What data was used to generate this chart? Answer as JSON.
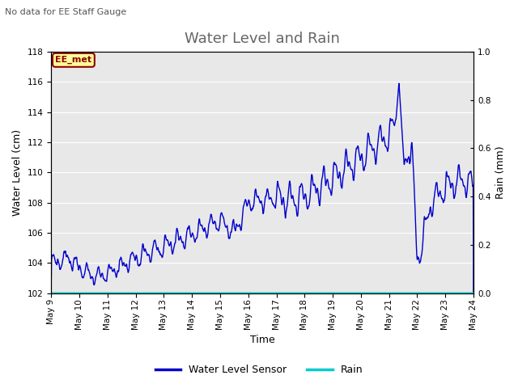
{
  "title": "Water Level and Rain",
  "subtitle": "No data for EE Staff Gauge",
  "xlabel": "Time",
  "ylabel_left": "Water Level (cm)",
  "ylabel_right": "Rain (mm)",
  "ylim_left": [
    102,
    118
  ],
  "ylim_right": [
    0.0,
    1.0
  ],
  "water_color": "#0000cc",
  "rain_color": "#00cccc",
  "bg_color": "#e8e8e8",
  "box_label": "EE_met",
  "box_bg": "#ffff99",
  "box_border": "#8b0000",
  "legend_wl": "Water Level Sensor",
  "legend_rain": "Rain",
  "title_fontsize": 13,
  "label_fontsize": 9,
  "tick_fontsize": 7.5
}
